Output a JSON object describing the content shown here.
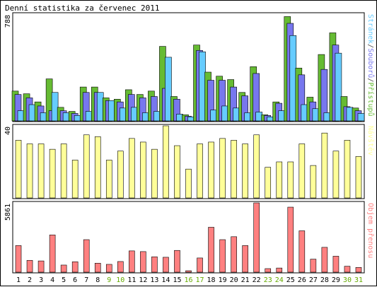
{
  "title": "Denní statistika za červenec 2011",
  "chart_data": [
    {
      "type": "bar",
      "ylabel_max": "788",
      "ylim": [
        0,
        788
      ],
      "legend": [
        {
          "label": "Přístupů",
          "color": "#66bb33"
        },
        {
          "label": "Souborů",
          "color": "#7777ee"
        },
        {
          "label": "Stránek",
          "color": "#66ccff"
        }
      ],
      "categories": [
        "1",
        "2",
        "3",
        "4",
        "5",
        "6",
        "7",
        "8",
        "9",
        "10",
        "11",
        "12",
        "13",
        "14",
        "15",
        "16",
        "17",
        "18",
        "19",
        "20",
        "21",
        "22",
        "23",
        "24",
        "25",
        "26",
        "27",
        "28",
        "29",
        "30",
        "31"
      ],
      "series": [
        {
          "name": "Přístupů",
          "color": "#66bb33",
          "values": [
            220,
            200,
            140,
            310,
            100,
            70,
            250,
            250,
            170,
            160,
            230,
            195,
            220,
            550,
            180,
            45,
            560,
            360,
            330,
            305,
            210,
            400,
            45,
            140,
            770,
            390,
            175,
            490,
            650,
            180,
            95
          ]
        },
        {
          "name": "Souborů",
          "color": "#7777ee",
          "values": [
            195,
            170,
            110,
            75,
            75,
            55,
            210,
            210,
            150,
            140,
            195,
            170,
            180,
            240,
            160,
            35,
            520,
            300,
            300,
            250,
            185,
            350,
            40,
            130,
            720,
            340,
            140,
            380,
            560,
            105,
            75
          ]
        },
        {
          "name": "Stránek",
          "color": "#66ccff",
          "values": [
            75,
            120,
            60,
            210,
            60,
            40,
            70,
            210,
            150,
            95,
            100,
            60,
            70,
            470,
            50,
            30,
            510,
            80,
            110,
            95,
            60,
            65,
            30,
            75,
            630,
            120,
            90,
            60,
            500,
            100,
            55
          ]
        }
      ]
    },
    {
      "type": "bar",
      "ylabel_max": "40",
      "ylim": [
        0,
        40
      ],
      "legend": [
        {
          "label": "Návštěv",
          "color": "#ffff99"
        }
      ],
      "categories": [
        "1",
        "2",
        "3",
        "4",
        "5",
        "6",
        "7",
        "8",
        "9",
        "10",
        "11",
        "12",
        "13",
        "14",
        "15",
        "16",
        "17",
        "18",
        "19",
        "20",
        "21",
        "22",
        "23",
        "24",
        "25",
        "26",
        "27",
        "28",
        "29",
        "30",
        "31"
      ],
      "series": [
        {
          "name": "Návštěv",
          "color": "#ffff99",
          "values": [
            32,
            30,
            30,
            27,
            30,
            21,
            35,
            34,
            21,
            26,
            33,
            31,
            27,
            40,
            29,
            16,
            30,
            31,
            33,
            32,
            30,
            35,
            17,
            20,
            20,
            30,
            18,
            36,
            26,
            32,
            23
          ]
        }
      ]
    },
    {
      "type": "bar",
      "ylabel_max": "5861",
      "ylim": [
        0,
        5861
      ],
      "legend": [
        {
          "label": "Objem přenosu",
          "color": "#ff8080"
        }
      ],
      "categories": [
        "1",
        "2",
        "3",
        "4",
        "5",
        "6",
        "7",
        "8",
        "9",
        "10",
        "11",
        "12",
        "13",
        "14",
        "15",
        "16",
        "17",
        "18",
        "19",
        "20",
        "21",
        "22",
        "23",
        "24",
        "25",
        "26",
        "27",
        "28",
        "29",
        "30",
        "31"
      ],
      "series": [
        {
          "name": "Objem přenosu",
          "color": "#ff8080",
          "values": [
            2250,
            1000,
            950,
            3150,
            600,
            880,
            2750,
            760,
            660,
            900,
            1800,
            1740,
            1300,
            1260,
            1840,
            120,
            1200,
            3800,
            2750,
            3000,
            2250,
            5861,
            300,
            350,
            5500,
            3500,
            1100,
            2100,
            1350,
            500,
            400
          ]
        }
      ]
    }
  ],
  "weekend_days": [
    "9",
    "10",
    "16",
    "17",
    "23",
    "24",
    "30",
    "31"
  ],
  "colors": {
    "day_label": "#000000",
    "weekend_label": "#66aa00",
    "frame": "#000000"
  }
}
